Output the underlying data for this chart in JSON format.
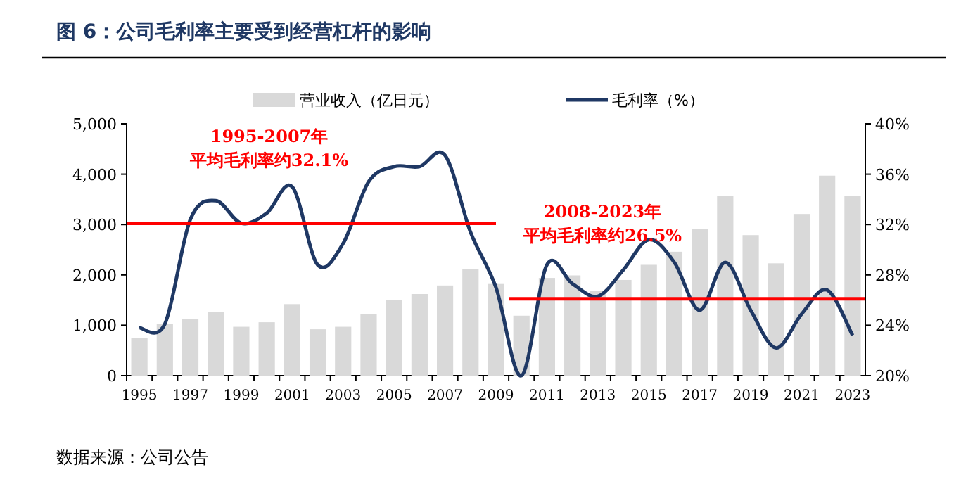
{
  "chart_data": {
    "type": "bar",
    "title": "图 6：公司毛利率主要受到经营杠杆的影响",
    "categories": [
      "1995",
      null,
      "1997",
      null,
      "1999",
      null,
      "2001",
      null,
      "2003",
      null,
      "2005",
      null,
      "2007",
      null,
      "2009",
      null,
      "2011",
      null,
      "2013",
      null,
      "2015",
      null,
      "2017",
      null,
      "2019",
      null,
      "2021",
      null,
      "2023"
    ],
    "series": [
      {
        "name": "营业收入（亿日元）",
        "color": "#d9d9d9",
        "values": [
          750,
          1030,
          1120,
          1260,
          970,
          1060,
          1420,
          920,
          970,
          1220,
          1500,
          1620,
          1790,
          2120,
          1820,
          1190,
          1940,
          1990,
          1690,
          1900,
          2200,
          2460,
          2910,
          3570,
          2790,
          2230,
          3210,
          3970,
          3570
        ]
      },
      {
        "name": "毛利率（%）",
        "type": "line",
        "axis": "y2",
        "color": "#1f3864",
        "values": [
          23.8,
          24.1,
          32.4,
          33.9,
          32.1,
          32.9,
          35.0,
          28.8,
          30.5,
          35.4,
          36.6,
          36.6,
          37.5,
          31.4,
          27.0,
          20.0,
          28.8,
          27.3,
          26.3,
          28.4,
          30.8,
          29.0,
          25.2,
          29.0,
          25.2,
          22.2,
          24.9,
          26.8,
          23.2
        ]
      }
    ],
    "ref_lines": [
      {
        "axis": "y2",
        "value": 32.1,
        "label": "1995-2007年",
        "color": "#ff0000"
      },
      {
        "axis": "y2",
        "value": 26.1,
        "label": "2008-2023年",
        "color": "#ff0000"
      }
    ],
    "ylim": [
      0,
      5000
    ],
    "yticks": [
      0,
      {
        "value": 1000,
        "label": "1,000"
      },
      {
        "value": 2000,
        "label": "2,000"
      },
      {
        "value": 3000,
        "label": "3,000"
      },
      {
        "value": 4000,
        "label": "4,000"
      },
      {
        "value": 5000,
        "label": "5,000"
      }
    ],
    "y2lim": [
      20,
      40
    ],
    "y2ticks": [
      {
        "value": 20,
        "label": "20%"
      },
      {
        "value": 24,
        "label": "24%"
      },
      {
        "value": 28,
        "label": "28%"
      },
      {
        "value": 32,
        "label": "32%"
      },
      {
        "value": 36,
        "label": "36%"
      },
      {
        "value": 40,
        "label": "40%"
      }
    ],
    "annotations": [
      "平均毛利率约32.1%",
      "平均毛利率约26.5%",
      "数据来源：公司公告"
    ],
    "legend": "top",
    "grid": false
  }
}
